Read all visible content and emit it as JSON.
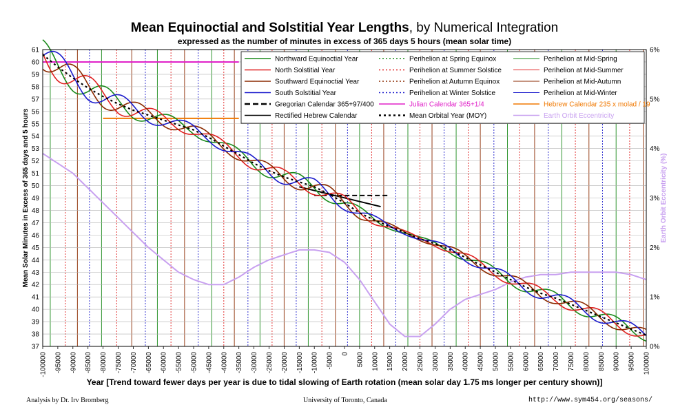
{
  "header": {
    "title_main": "Mean Equinoctial and Solstitial Year Lengths",
    "title_rest": ", by Numerical Integration",
    "subtitle": "expressed as the number of minutes in excess of 365 days 5 hours (mean solar time)"
  },
  "footer": {
    "left": "Analysis by Dr. Irv Bromberg",
    "center": "University of Toronto, Canada",
    "right": "http://www.sym454.org/seasons/"
  },
  "chart_data": {
    "type": "line",
    "xlabel": "Year [Trend toward fewer days per year is due to tidal slowing of Earth rotation (mean solar day 1.75 ms longer per century shown)]",
    "ylabel": "Mean Solar Minutes in Excess of 365 days and 5 hours",
    "y2label": "Earth Orbit Eccentricity (%)",
    "xlim": [
      -100000,
      100000
    ],
    "ylim": [
      37,
      61
    ],
    "y2lim": [
      0,
      6
    ],
    "x_ticks": [
      -100000,
      -95000,
      -90000,
      -85000,
      -80000,
      -75000,
      -70000,
      -65000,
      -60000,
      -55000,
      -50000,
      -45000,
      -40000,
      -35000,
      -30000,
      -25000,
      -20000,
      -15000,
      -10000,
      -5000,
      0,
      5000,
      10000,
      15000,
      20000,
      25000,
      30000,
      35000,
      40000,
      45000,
      50000,
      55000,
      60000,
      65000,
      70000,
      75000,
      80000,
      85000,
      90000,
      95000,
      100000
    ],
    "y_ticks": [
      37,
      38,
      39,
      40,
      41,
      42,
      43,
      44,
      45,
      46,
      47,
      48,
      49,
      50,
      51,
      52,
      53,
      54,
      55,
      56,
      57,
      58,
      59,
      60,
      61
    ],
    "y2_ticks": [
      "0%",
      "1%",
      "2%",
      "3%",
      "4%",
      "5%",
      "6%"
    ],
    "legend": [
      {
        "label": "Northward Equinoctial Year",
        "color": "#1a8a1a",
        "style": "solid"
      },
      {
        "label": "Perihelion at Spring Equinox",
        "color": "#1a8a1a",
        "style": "dotted"
      },
      {
        "label": "Perihelion at Mid-Spring",
        "color": "#1a8a1a",
        "style": "thin"
      },
      {
        "label": "North Solstitial Year",
        "color": "#e02020",
        "style": "solid"
      },
      {
        "label": "Perihelion at Summer Solstice",
        "color": "#e02020",
        "style": "dotted"
      },
      {
        "label": "Perihelion at Mid-Summer",
        "color": "#e02020",
        "style": "thin"
      },
      {
        "label": "Southward Equinoctial Year",
        "color": "#8b2a00",
        "style": "solid"
      },
      {
        "label": "Perihelion at Autumn Equinox",
        "color": "#8b2a00",
        "style": "dotted"
      },
      {
        "label": "Perihelion at Mid-Autumn",
        "color": "#8b2a00",
        "style": "thin"
      },
      {
        "label": "South Solstitial Year",
        "color": "#1a1acc",
        "style": "solid"
      },
      {
        "label": "Perihelion at Winter Solstice",
        "color": "#1a1acc",
        "style": "dotted"
      },
      {
        "label": "Perihelion at Mid-Winter",
        "color": "#1a1acc",
        "style": "thin"
      },
      {
        "label": "Gregorian Calendar 365+97/400",
        "color": "#000000",
        "style": "dashed"
      },
      {
        "label": "Julian Calendar 365+1/4",
        "color": "#e020c8",
        "style": "solid",
        "text_color": "#e020c8"
      },
      {
        "label": "Hebrew Calendar 235 x molad / 19",
        "color": "#f07800",
        "style": "solid",
        "text_color": "#f07800"
      },
      {
        "label": "Rectified Hebrew Calendar",
        "color": "#000000",
        "style": "solid"
      },
      {
        "label": "Mean Orbital Year (MOY)",
        "color": "#000000",
        "style": "dotted-bold"
      },
      {
        "label": "Earth Orbit Eccentricity",
        "color": "#c8a0f0",
        "style": "solid",
        "text_color": "#c8a0f0"
      }
    ],
    "series": [
      {
        "name": "Mean Orbital Year (MOY)",
        "color": "#000000",
        "x": [
          -100000,
          -95000,
          -90000,
          -85000,
          -80000,
          -75000,
          -70000,
          -65000,
          -60000,
          -55000,
          -50000,
          -45000,
          -40000,
          -35000,
          -30000,
          -25000,
          -20000,
          -15000,
          -10000,
          -5000,
          0,
          5000,
          10000,
          15000,
          20000,
          25000,
          30000,
          35000,
          40000,
          45000,
          50000,
          55000,
          60000,
          65000,
          70000,
          75000,
          80000,
          85000,
          90000,
          95000,
          100000
        ],
        "values": [
          60.6,
          59.6,
          58.7,
          57.9,
          57.2,
          56.6,
          56.1,
          55.7,
          55.3,
          54.9,
          54.5,
          53.9,
          53.2,
          52.5,
          51.8,
          51.2,
          50.7,
          50.3,
          49.9,
          49.3,
          48.6,
          47.8,
          47.2,
          46.7,
          46.2,
          45.7,
          45.3,
          44.8,
          44.2,
          43.6,
          43.0,
          42.4,
          41.8,
          41.3,
          40.9,
          40.4,
          39.9,
          39.4,
          38.9,
          38.4,
          37.9
        ]
      },
      {
        "name": "Earth Orbit Eccentricity",
        "axis": "y2",
        "color": "#c8a0f0",
        "x": [
          -100000,
          -95000,
          -90000,
          -85000,
          -80000,
          -75000,
          -70000,
          -65000,
          -60000,
          -55000,
          -50000,
          -45000,
          -40000,
          -35000,
          -30000,
          -25000,
          -20000,
          -15000,
          -10000,
          -5000,
          0,
          5000,
          10000,
          15000,
          20000,
          25000,
          30000,
          35000,
          40000,
          45000,
          50000,
          55000,
          60000,
          65000,
          70000,
          75000,
          80000,
          85000,
          90000,
          95000,
          100000
        ],
        "values": [
          3.9,
          3.7,
          3.5,
          3.2,
          2.9,
          2.6,
          2.3,
          2.0,
          1.75,
          1.5,
          1.35,
          1.25,
          1.25,
          1.4,
          1.6,
          1.75,
          1.85,
          1.95,
          1.95,
          1.9,
          1.7,
          1.35,
          0.9,
          0.45,
          0.2,
          0.2,
          0.45,
          0.75,
          0.95,
          1.05,
          1.15,
          1.3,
          1.4,
          1.45,
          1.45,
          1.5,
          1.5,
          1.5,
          1.5,
          1.45,
          1.35
        ]
      }
    ],
    "oscillating_series": [
      {
        "name": "Northward Equinoctial Year",
        "color": "#1a8a1a",
        "phase_deg": 0
      },
      {
        "name": "North Solstitial Year",
        "color": "#e02020",
        "phase_deg": 90
      },
      {
        "name": "Southward Equinoctial Year",
        "color": "#8b2a00",
        "phase_deg": 180
      },
      {
        "name": "South Solstitial Year",
        "color": "#1a1acc",
        "phase_deg": 270
      }
    ],
    "calendar_lines": [
      {
        "name": "Julian Calendar 365+1/4",
        "color": "#e020c8",
        "x": [
          -100000,
          -35000
        ],
        "y": [
          60,
          60
        ]
      },
      {
        "name": "Hebrew Calendar 235 x molad / 19",
        "color": "#f07800",
        "x": [
          -80000,
          -35000
        ],
        "y": [
          55.44,
          55.44
        ]
      },
      {
        "name": "Gregorian Calendar 365+97/400",
        "color": "#000000",
        "x": [
          -10000,
          15000
        ],
        "y": [
          49.2,
          49.2
        ]
      },
      {
        "name": "Rectified Hebrew Calendar",
        "color": "#000000",
        "x": [
          -15000,
          12000
        ],
        "y": [
          49.9,
          48.3
        ]
      }
    ],
    "perihelion_marker_years": [
      -97500,
      -92500,
      -88500,
      -84500,
      -80500,
      -75500,
      -70500,
      -66000,
      -62000,
      -57500,
      -53000,
      -48500,
      -44000,
      -40000,
      -36500,
      -32000,
      -28000,
      -24000,
      -20000,
      -16000,
      -12000,
      -7500,
      -3000,
      1000,
      5000,
      9000,
      13000,
      17000,
      21000,
      25000,
      29000,
      33000,
      37000,
      41000,
      45000,
      49500,
      54000,
      58000,
      63000,
      67500,
      72000,
      76500,
      81000,
      85500,
      90000,
      94500,
      99000
    ]
  }
}
